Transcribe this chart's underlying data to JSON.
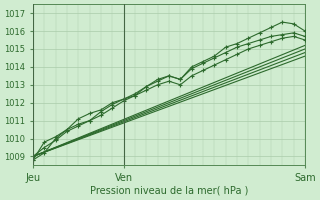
{
  "xlabel": "Pression niveau de la mer( hPa )",
  "bg_color": "#d0ecd0",
  "grid_color": "#aaccaa",
  "line_color": "#2d6a2d",
  "ylim": [
    1008.5,
    1017.5
  ],
  "xlim": [
    0,
    48
  ],
  "x_ticks": [
    0,
    16,
    48
  ],
  "x_tick_labels": [
    "Jeu",
    "Ven",
    "Sam"
  ],
  "y_ticks": [
    1009,
    1010,
    1011,
    1012,
    1013,
    1014,
    1015,
    1016,
    1017
  ],
  "smooth_series": [
    [
      [
        0,
        48
      ],
      [
        1009.0,
        1015.2
      ]
    ],
    [
      [
        0,
        48
      ],
      [
        1009.0,
        1015.0
      ]
    ],
    [
      [
        0,
        48
      ],
      [
        1009.0,
        1014.8
      ]
    ],
    [
      [
        0,
        48
      ],
      [
        1009.0,
        1014.6
      ]
    ]
  ],
  "marker_series": [
    {
      "x": [
        0,
        2,
        4,
        6,
        8,
        10,
        12,
        14,
        16,
        18,
        20,
        22,
        24,
        26,
        28,
        30,
        32,
        34,
        36,
        38,
        40,
        42,
        44,
        46,
        48
      ],
      "y": [
        1008.8,
        1009.8,
        1010.1,
        1010.5,
        1011.1,
        1011.4,
        1011.6,
        1012.0,
        1012.2,
        1012.4,
        1012.9,
        1013.2,
        1013.5,
        1013.3,
        1013.9,
        1014.2,
        1014.5,
        1014.8,
        1015.1,
        1015.3,
        1015.5,
        1015.7,
        1015.8,
        1015.9,
        1015.7
      ]
    },
    {
      "x": [
        0,
        2,
        4,
        6,
        8,
        10,
        12,
        14,
        16,
        18,
        20,
        22,
        24,
        26,
        28,
        30,
        32,
        34,
        36,
        38,
        40,
        42,
        44,
        46,
        48
      ],
      "y": [
        1008.8,
        1009.2,
        1010.0,
        1010.5,
        1010.8,
        1011.0,
        1011.5,
        1011.9,
        1012.2,
        1012.5,
        1012.9,
        1013.3,
        1013.5,
        1013.3,
        1014.0,
        1014.3,
        1014.6,
        1015.1,
        1015.3,
        1015.6,
        1015.9,
        1016.2,
        1016.5,
        1016.4,
        1016.0
      ]
    },
    {
      "x": [
        0,
        2,
        4,
        6,
        8,
        10,
        12,
        14,
        16,
        18,
        20,
        22,
        24,
        26,
        28,
        30,
        32,
        34,
        36,
        38,
        40,
        42,
        44,
        46,
        48
      ],
      "y": [
        1009.0,
        1009.5,
        1009.9,
        1010.4,
        1010.7,
        1011.0,
        1011.3,
        1011.7,
        1012.1,
        1012.4,
        1012.7,
        1013.0,
        1013.2,
        1013.0,
        1013.5,
        1013.8,
        1014.1,
        1014.4,
        1014.7,
        1015.0,
        1015.2,
        1015.4,
        1015.6,
        1015.7,
        1015.5
      ]
    }
  ],
  "smooth_linewidth": 0.8,
  "marker_linewidth": 0.8,
  "marker_style": "P",
  "marker_size": 2.5
}
